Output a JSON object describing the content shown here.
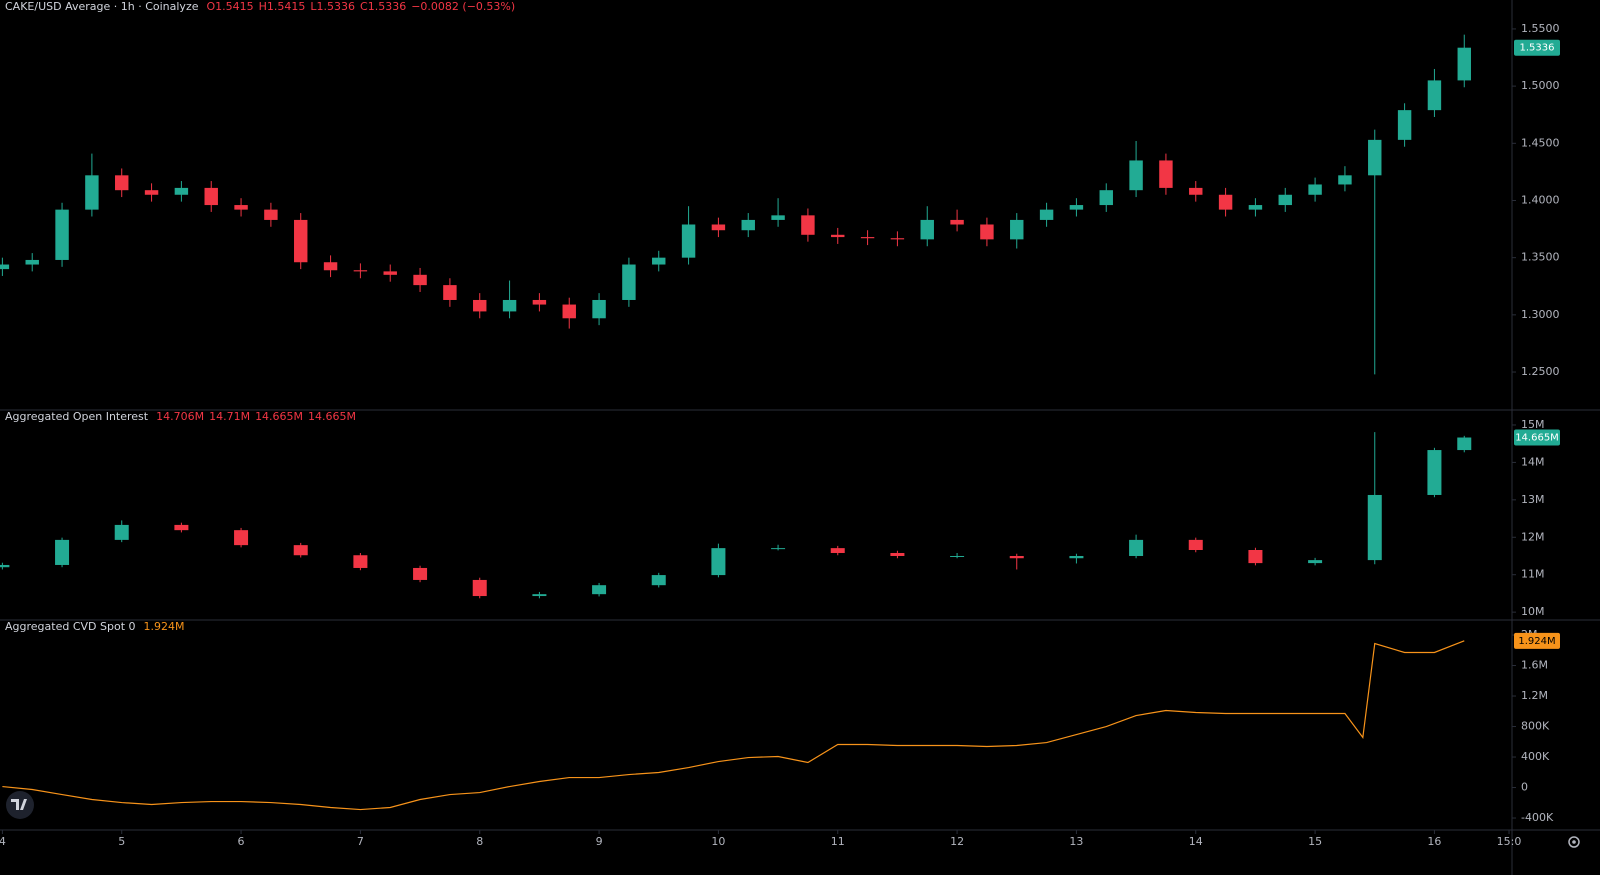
{
  "chart_data": [
    {
      "type": "candlestick",
      "title": "CAKE/USD Average · 1h · Coinalyze",
      "legend_values": [
        "O1.5415",
        "H1.5415",
        "L1.5336",
        "C1.5336",
        "−0.0082 (−0.53%)"
      ],
      "last_label": "1.5336",
      "up_color": "#22ab94",
      "down_color": "#f23645",
      "xlim": [
        3.98,
        16.65
      ],
      "ylim": [
        1.2168,
        1.5753
      ],
      "yticks": [
        {
          "value": 1.25,
          "label": "1.2500"
        },
        {
          "value": 1.3,
          "label": "1.3000"
        },
        {
          "value": 1.35,
          "label": "1.3500"
        },
        {
          "value": 1.4,
          "label": "1.4000"
        },
        {
          "value": 1.45,
          "label": "1.4500"
        },
        {
          "value": 1.5,
          "label": "1.5000"
        },
        {
          "value": 1.55,
          "label": "1.5500"
        }
      ],
      "x": [
        4,
        4.25,
        4.5,
        4.75,
        5,
        5.25,
        5.5,
        5.75,
        6,
        6.25,
        6.5,
        6.75,
        7,
        7.25,
        7.5,
        7.75,
        8,
        8.25,
        8.5,
        8.75,
        9,
        9.25,
        9.5,
        9.75,
        10,
        10.25,
        10.5,
        10.75,
        11,
        11.25,
        11.5,
        11.75,
        12,
        12.25,
        12.5,
        12.75,
        13,
        13.25,
        13.5,
        13.75,
        14,
        14.25,
        14.5,
        14.75,
        15,
        15.25,
        15.5,
        15.75,
        16,
        16.25
      ],
      "open": [
        1.34,
        1.344,
        1.348,
        1.392,
        1.422,
        1.409,
        1.405,
        1.411,
        1.396,
        1.392,
        1.383,
        1.346,
        1.339,
        1.338,
        1.335,
        1.326,
        1.313,
        1.303,
        1.313,
        1.309,
        1.297,
        1.313,
        1.344,
        1.35,
        1.379,
        1.374,
        1.383,
        1.387,
        1.37,
        1.368,
        1.367,
        1.366,
        1.383,
        1.379,
        1.366,
        1.383,
        1.392,
        1.396,
        1.409,
        1.435,
        1.411,
        1.405,
        1.392,
        1.396,
        1.405,
        1.414,
        1.422,
        1.453,
        1.479,
        1.505
      ],
      "high": [
        1.35,
        1.354,
        1.398,
        1.441,
        1.428,
        1.415,
        1.417,
        1.417,
        1.402,
        1.398,
        1.389,
        1.352,
        1.345,
        1.344,
        1.341,
        1.332,
        1.319,
        1.33,
        1.319,
        1.315,
        1.319,
        1.35,
        1.356,
        1.395,
        1.385,
        1.389,
        1.402,
        1.393,
        1.376,
        1.374,
        1.373,
        1.395,
        1.392,
        1.385,
        1.389,
        1.398,
        1.402,
        1.415,
        1.452,
        1.441,
        1.417,
        1.411,
        1.402,
        1.411,
        1.42,
        1.43,
        1.462,
        1.485,
        1.515,
        1.545
      ],
      "low": [
        1.334,
        1.338,
        1.342,
        1.386,
        1.403,
        1.399,
        1.399,
        1.39,
        1.386,
        1.377,
        1.34,
        1.333,
        1.332,
        1.329,
        1.32,
        1.307,
        1.297,
        1.297,
        1.303,
        1.288,
        1.291,
        1.307,
        1.338,
        1.344,
        1.368,
        1.368,
        1.377,
        1.364,
        1.362,
        1.361,
        1.36,
        1.36,
        1.373,
        1.36,
        1.358,
        1.377,
        1.386,
        1.39,
        1.403,
        1.405,
        1.399,
        1.386,
        1.386,
        1.39,
        1.399,
        1.408,
        1.248,
        1.447,
        1.473,
        1.499
      ],
      "close": [
        1.344,
        1.348,
        1.392,
        1.422,
        1.409,
        1.405,
        1.411,
        1.396,
        1.392,
        1.383,
        1.346,
        1.339,
        1.338,
        1.335,
        1.326,
        1.313,
        1.303,
        1.313,
        1.309,
        1.297,
        1.313,
        1.344,
        1.35,
        1.379,
        1.374,
        1.383,
        1.387,
        1.37,
        1.368,
        1.367,
        1.366,
        1.383,
        1.379,
        1.366,
        1.383,
        1.392,
        1.396,
        1.409,
        1.435,
        1.411,
        1.405,
        1.392,
        1.396,
        1.405,
        1.414,
        1.422,
        1.453,
        1.479,
        1.505,
        1.5336
      ]
    },
    {
      "type": "candlestick",
      "title": "Aggregated Open Interest",
      "legend_values": [
        "14.706M",
        "14.71M",
        "14.665M",
        "14.665M"
      ],
      "last_label": "14.665M",
      "up_color": "#22ab94",
      "down_color": "#f23645",
      "xlim": [
        3.98,
        16.65
      ],
      "ylim": [
        9790000,
        15400000
      ],
      "yticks": [
        {
          "value": 10000000,
          "label": "10M"
        },
        {
          "value": 11000000,
          "label": "11M"
        },
        {
          "value": 12000000,
          "label": "12M"
        },
        {
          "value": 13000000,
          "label": "13M"
        },
        {
          "value": 14000000,
          "label": "14M"
        },
        {
          "value": 15000000,
          "label": "15M"
        }
      ],
      "x": [
        4,
        4.5,
        5,
        5.5,
        6,
        6.5,
        7,
        7.5,
        8,
        8.5,
        9,
        9.5,
        10,
        10.5,
        11,
        11.5,
        12,
        12.5,
        13,
        13.5,
        14,
        14.5,
        15,
        15.5,
        16,
        16.25
      ],
      "open": [
        11200000,
        11260000,
        11930000,
        12330000,
        12190000,
        11790000,
        11520000,
        11180000,
        10860000,
        10430000,
        10480000,
        10720000,
        10990000,
        11710000,
        11710000,
        11580000,
        11500000,
        11500000,
        11440000,
        11500000,
        11930000,
        11660000,
        11310000,
        11390000,
        13130000,
        14330000
      ],
      "high": [
        11320000,
        11990000,
        12450000,
        12390000,
        12250000,
        11850000,
        11580000,
        11240000,
        10920000,
        10540000,
        10780000,
        11050000,
        11830000,
        11800000,
        11770000,
        11640000,
        11580000,
        11560000,
        11560000,
        12070000,
        11990000,
        11720000,
        11450000,
        14810000,
        14390000,
        14710000
      ],
      "low": [
        11140000,
        11200000,
        11870000,
        12130000,
        11730000,
        11460000,
        11120000,
        10800000,
        10370000,
        10370000,
        10420000,
        10660000,
        10930000,
        11650000,
        11520000,
        11440000,
        11440000,
        11140000,
        11300000,
        11440000,
        11600000,
        11250000,
        11250000,
        11280000,
        13070000,
        14270000
      ],
      "close": [
        11260000,
        11930000,
        12330000,
        12190000,
        11790000,
        11520000,
        11180000,
        10860000,
        10430000,
        10480000,
        10720000,
        10990000,
        11710000,
        11710000,
        11580000,
        11500000,
        11500000,
        11440000,
        11500000,
        11930000,
        11660000,
        11310000,
        11390000,
        13130000,
        14330000,
        14665000
      ]
    },
    {
      "type": "line",
      "title": "Aggregated CVD Spot 0",
      "legend_values": [
        "1.924M"
      ],
      "last_label": "1.924M",
      "color": "#f7931a",
      "xlim": [
        3.98,
        16.65
      ],
      "ylim": [
        -557000,
        2197000
      ],
      "yticks": [
        {
          "value": -400000,
          "label": "-400K"
        },
        0,
        {
          "value": 400000,
          "label": "400K"
        },
        {
          "value": 800000,
          "label": "800K"
        },
        {
          "value": 1200000,
          "label": "1.2M"
        },
        {
          "value": 1600000,
          "label": "1.6M"
        },
        {
          "value": 2000000,
          "label": "2M"
        }
      ],
      "xticks": [
        4,
        5,
        6,
        7,
        8,
        9,
        10,
        11,
        12,
        13,
        14,
        15,
        16,
        {
          "value": 16.625,
          "label": "15:0"
        }
      ],
      "x": [
        4,
        4.25,
        4.5,
        4.75,
        5,
        5.25,
        5.5,
        5.75,
        6,
        6.25,
        6.5,
        6.75,
        7,
        7.25,
        7.5,
        7.75,
        8,
        8.25,
        8.5,
        8.75,
        9,
        9.25,
        9.5,
        9.75,
        10,
        10.25,
        10.5,
        10.75,
        11,
        11.25,
        11.5,
        11.75,
        12,
        12.25,
        12.5,
        12.75,
        13,
        13.25,
        13.5,
        13.75,
        14,
        14.25,
        14.5,
        14.75,
        15,
        15.25,
        15.4,
        15.5,
        15.75,
        16,
        16.25
      ],
      "values": [
        13000,
        -26000,
        -92000,
        -157000,
        -197000,
        -223000,
        -197000,
        -184000,
        -184000,
        -197000,
        -223000,
        -262000,
        -289000,
        -262000,
        -157000,
        -92000,
        -66000,
        13000,
        79000,
        131000,
        131000,
        170000,
        197000,
        262000,
        341000,
        393000,
        407000,
        328000,
        564000,
        564000,
        551000,
        551000,
        551000,
        538000,
        551000,
        590000,
        695000,
        800000,
        944000,
        1010000,
        984000,
        971000,
        971000,
        971000,
        971000,
        971000,
        656000,
        1889000,
        1771000,
        1771000,
        1924000
      ]
    }
  ]
}
